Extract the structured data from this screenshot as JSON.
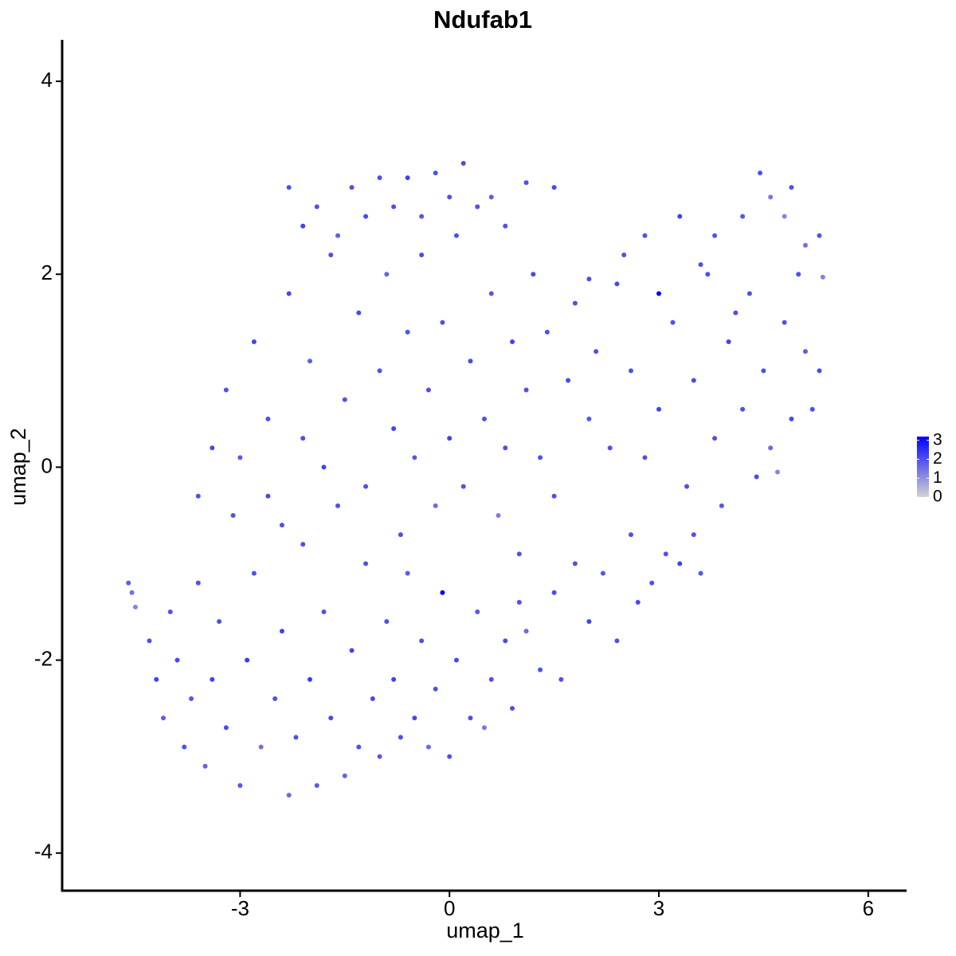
{
  "chart_data": {
    "type": "scatter",
    "title": "Ndufab1",
    "x_label": "umap_1",
    "y_label": "umap_2",
    "xlim": [
      -5.55,
      6.55
    ],
    "ylim": [
      -4.39,
      4.43
    ],
    "xticks": [
      -3,
      0,
      3,
      6
    ],
    "yticks": [
      -4,
      -2,
      0,
      2,
      4
    ],
    "colors": [
      "#d3d3d3",
      "#0000ff"
    ],
    "clim": [
      0,
      3.2
    ],
    "cticks": [
      0,
      1,
      2,
      3
    ],
    "x": [
      -4.6,
      -4.55,
      -4.5,
      -4.3,
      -4.2,
      -4.0,
      -4.1,
      -3.9,
      -3.8,
      -3.7,
      -3.6,
      -3.5,
      -3.4,
      -3.3,
      -3.2,
      -3.1,
      -3.0,
      -2.9,
      -2.8,
      -2.7,
      -2.6,
      -2.5,
      -2.4,
      -2.3,
      -2.2,
      -2.1,
      -2.0,
      -1.9,
      -1.8,
      -1.7,
      -1.6,
      -1.5,
      -1.4,
      -1.3,
      -1.2,
      -1.1,
      -1.0,
      -0.9,
      -0.8,
      -0.7,
      -0.6,
      -0.5,
      -0.4,
      -0.3,
      -0.2,
      -0.1,
      0.0,
      0.1,
      0.3,
      0.4,
      0.5,
      0.6,
      0.8,
      0.9,
      1.0,
      1.1,
      1.3,
      1.5,
      1.6,
      1.8,
      2.0,
      2.2,
      2.4,
      2.6,
      2.7,
      2.9,
      3.1,
      3.3,
      3.5,
      3.6,
      -3.6,
      -3.4,
      -3.2,
      -3.0,
      -2.8,
      -2.6,
      -2.4,
      -2.3,
      -2.1,
      -2.0,
      -1.8,
      -1.7,
      -1.5,
      -1.3,
      -1.2,
      -1.0,
      -0.9,
      -0.8,
      -0.7,
      -0.6,
      -0.5,
      -0.4,
      -0.3,
      -0.2,
      -0.1,
      0.0,
      0.1,
      0.2,
      0.3,
      0.5,
      0.6,
      0.7,
      0.8,
      0.9,
      1.0,
      1.1,
      1.2,
      1.3,
      1.4,
      1.5,
      1.7,
      1.8,
      2.0,
      2.1,
      2.3,
      2.4,
      2.6,
      2.8,
      3.0,
      3.2,
      3.4,
      3.5,
      3.7,
      3.8,
      3.9,
      4.0,
      4.2,
      4.3,
      4.4,
      4.5,
      4.6,
      4.7,
      4.8,
      4.9,
      5.0,
      5.1,
      5.2,
      5.3,
      -2.3,
      -2.1,
      -1.9,
      -1.6,
      -1.4,
      -1.2,
      -1.0,
      -0.8,
      -0.6,
      -0.4,
      -0.2,
      0.0,
      0.2,
      0.4,
      0.6,
      0.8,
      1.1,
      1.5,
      2.8,
      3.3,
      3.8,
      4.2,
      4.45,
      4.6,
      4.8,
      4.9,
      5.1,
      5.3,
      5.35,
      2.0,
      2.5,
      3.0,
      3.6,
      4.1
    ],
    "y": [
      -1.2,
      -1.3,
      -1.45,
      -1.8,
      -2.2,
      -1.5,
      -2.6,
      -2.0,
      -2.9,
      -2.4,
      -1.2,
      -3.1,
      -2.2,
      -1.6,
      -2.7,
      -0.5,
      -3.3,
      -2.0,
      -1.1,
      -2.9,
      -0.3,
      -2.4,
      -1.7,
      -3.4,
      -2.8,
      -0.8,
      -2.2,
      -3.3,
      -1.5,
      -2.6,
      -0.4,
      -3.2,
      -1.9,
      -2.9,
      -1.0,
      -2.4,
      -3.0,
      -1.6,
      -2.2,
      -2.8,
      -1.1,
      -2.6,
      -1.8,
      -2.9,
      -2.3,
      -1.3,
      -3.0,
      -2.0,
      -2.6,
      -1.5,
      -2.7,
      -2.2,
      -1.8,
      -2.5,
      -1.4,
      -1.7,
      -2.1,
      -1.3,
      -2.2,
      -1.0,
      -1.6,
      -1.1,
      -1.8,
      -0.7,
      -1.4,
      -1.2,
      -0.9,
      -1.0,
      -0.7,
      -1.1,
      -0.3,
      0.2,
      0.8,
      0.1,
      1.3,
      0.5,
      -0.6,
      1.8,
      0.3,
      1.1,
      0.0,
      2.2,
      0.7,
      1.6,
      -0.2,
      1.0,
      2.0,
      0.4,
      -0.7,
      1.4,
      0.1,
      2.2,
      0.8,
      -0.4,
      1.5,
      0.3,
      2.4,
      -0.2,
      1.1,
      0.5,
      1.8,
      -0.5,
      0.2,
      1.3,
      -0.9,
      0.8,
      2.0,
      0.1,
      1.4,
      -0.3,
      0.9,
      1.7,
      0.5,
      1.2,
      0.2,
      1.9,
      1.0,
      0.1,
      0.6,
      1.5,
      -0.2,
      0.9,
      2.0,
      0.3,
      -0.4,
      1.3,
      0.6,
      1.8,
      -0.1,
      1.0,
      0.2,
      -0.05,
      1.5,
      0.5,
      2.0,
      1.2,
      0.6,
      1.0,
      2.9,
      2.5,
      2.7,
      2.4,
      2.9,
      2.6,
      3.0,
      2.7,
      3.0,
      2.6,
      3.05,
      2.8,
      3.15,
      2.7,
      2.8,
      2.5,
      2.95,
      2.9,
      2.4,
      2.6,
      2.4,
      2.6,
      3.05,
      2.8,
      2.6,
      2.9,
      2.3,
      2.4,
      1.97,
      1.95,
      2.2,
      1.8,
      2.1,
      1.6
    ],
    "values": [
      1.8,
      1.5,
      1.2,
      2,
      2.2,
      2,
      1.8,
      2.1,
      2,
      1.9,
      2,
      1.7,
      2.2,
      2,
      2.1,
      2,
      1.9,
      2.3,
      2,
      1.5,
      2.1,
      2,
      2.2,
      1.6,
      2,
      2,
      2.3,
      1.8,
      2,
      2.1,
      2,
      1.7,
      2.2,
      2,
      2,
      2.1,
      1.9,
      2,
      2.2,
      2,
      1.8,
      2.1,
      2,
      1.6,
      2,
      3.2,
      2,
      2.1,
      2,
      1.9,
      1.4,
      2,
      2.1,
      2,
      2,
      1.6,
      2,
      2.1,
      2,
      2,
      2.2,
      1.9,
      2,
      2,
      2.1,
      2,
      2,
      2.2,
      2,
      1.9,
      2,
      2.1,
      2,
      1.9,
      2.2,
      2,
      2,
      2.1,
      2,
      1.8,
      2.2,
      2,
      2,
      2.1,
      2,
      2,
      1.7,
      2.2,
      2,
      2,
      1.9,
      2.1,
      2,
      1.6,
      2,
      2.2,
      2,
      2,
      2.1,
      2,
      1.9,
      1.3,
      2,
      2.2,
      2,
      2,
      2.1,
      2,
      2,
      2,
      2.1,
      2,
      1.9,
      2,
      2,
      2.1,
      2,
      2,
      2.2,
      2,
      2,
      2.1,
      2,
      2,
      1.9,
      2.2,
      2,
      2,
      2.1,
      2,
      1.6,
      1.2,
      2,
      2.1,
      2,
      1.8,
      2,
      2.1,
      2,
      2.2,
      2,
      1.8,
      2,
      2.1,
      2,
      2,
      2.2,
      1.9,
      2,
      2,
      2.1,
      2,
      1.8,
      2,
      2,
      2.1,
      2,
      2.2,
      2,
      1.9,
      2,
      1.4,
      1.2,
      2,
      1.5,
      2,
      1.2,
      2,
      2,
      3.2,
      2,
      2
    ]
  }
}
